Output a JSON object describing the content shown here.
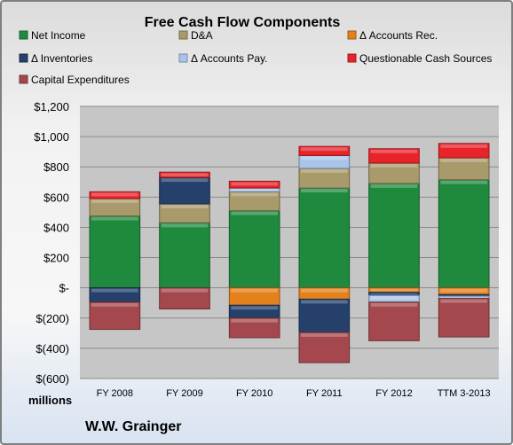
{
  "colors": {
    "net_income": "#1f8a3e",
    "da": "#a89a6a",
    "accounts_rec": "#e3821d",
    "inventories": "#24406b",
    "accounts_pay": "#a9c4e8",
    "questionable": "#e8232a",
    "capex": "#a5484d"
  },
  "footer": {
    "company": "W.W. Grainger"
  },
  "chart_data": {
    "type": "bar",
    "stacked": true,
    "title": "Free Cash Flow Components",
    "ylabel": "millions",
    "ylim": [
      -600,
      1200
    ],
    "yticks": [
      -600,
      -400,
      -200,
      0,
      200,
      400,
      600,
      800,
      1000,
      1200
    ],
    "ytick_labels": [
      "$(600)",
      "$(400)",
      "$(200)",
      "$-",
      "$200",
      "$400",
      "$600",
      "$800",
      "$1,000",
      "$1,200"
    ],
    "categories": [
      "FY 2008",
      "FY 2009",
      "FY 2010",
      "FY 2011",
      "FY 2012",
      "TTM 3-2013"
    ],
    "grid": true,
    "legend_position": "top",
    "series": [
      {
        "key": "net_income",
        "name": "Net Income",
        "values": [
          475,
          430,
          510,
          660,
          690,
          715
        ]
      },
      {
        "key": "da",
        "name": "D&A",
        "values": [
          115,
          125,
          125,
          130,
          135,
          145
        ]
      },
      {
        "key": "accounts_rec",
        "name": "Δ Accounts Rec.",
        "values": [
          0,
          0,
          -115,
          -75,
          -30,
          -45
        ]
      },
      {
        "key": "inventories",
        "name": "Δ Inventories",
        "values": [
          -95,
          175,
          -85,
          -220,
          -20,
          -10
        ]
      },
      {
        "key": "accounts_pay",
        "name": "Δ Accounts Pay.",
        "values": [
          0,
          0,
          25,
          85,
          -45,
          -15
        ]
      },
      {
        "key": "questionable",
        "name": "Questionable Cash Sources",
        "values": [
          45,
          35,
          45,
          60,
          95,
          95
        ]
      },
      {
        "key": "capex",
        "name": "Capital Expenditures",
        "values": [
          -180,
          -140,
          -130,
          -200,
          -255,
          -255
        ]
      }
    ]
  }
}
